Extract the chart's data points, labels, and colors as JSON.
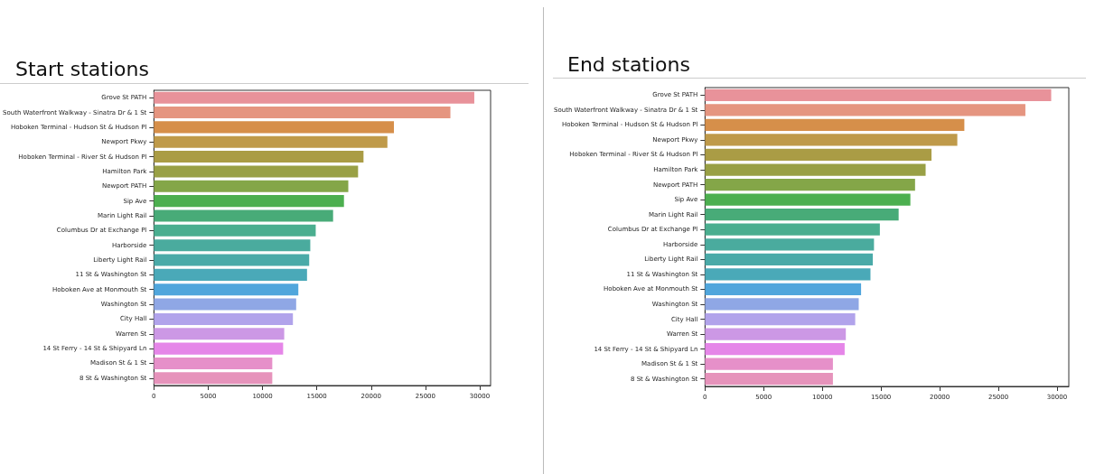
{
  "chart_data": [
    {
      "type": "bar",
      "orientation": "horizontal",
      "title": "Start stations",
      "categories": [
        "Grove St PATH",
        "South Waterfront Walkway - Sinatra Dr & 1 St",
        "Hoboken Terminal - Hudson St & Hudson Pl",
        "Newport Pkwy",
        "Hoboken Terminal - River St & Hudson Pl",
        "Hamilton Park",
        "Newport PATH",
        "Sip Ave",
        "Marin Light Rail",
        "Columbus Dr at Exchange Pl",
        "Harborside",
        "Liberty Light Rail",
        "11 St & Washington St",
        "Hoboken Ave at Monmouth St",
        "Washington St",
        "City Hall",
        "Warren St",
        "14 St Ferry - 14 St & Shipyard Ln",
        "Madison St & 1 St",
        "8 St & Washington St"
      ],
      "values": [
        29500,
        27300,
        22100,
        21500,
        19300,
        18800,
        17900,
        17500,
        16500,
        14900,
        14400,
        14300,
        14100,
        13300,
        13100,
        12800,
        12000,
        11900,
        10900,
        10900
      ],
      "colors": [
        "#e8929a",
        "#e59580",
        "#d68f4a",
        "#bf9a4a",
        "#aa9c45",
        "#99a045",
        "#84a648",
        "#4caf4f",
        "#48ab78",
        "#4aae8f",
        "#4aab9e",
        "#4aaaa8",
        "#4aa9b8",
        "#50a6dc",
        "#8fa7e5",
        "#b1a3eb",
        "#cc98e5",
        "#e586e8",
        "#e690c9",
        "#e693bb"
      ],
      "xlim": [
        0,
        31000
      ],
      "xticks": [
        0,
        5000,
        10000,
        15000,
        20000,
        25000,
        30000
      ]
    },
    {
      "type": "bar",
      "orientation": "horizontal",
      "title": "End stations",
      "categories": [
        "Grove St PATH",
        "South Waterfront Walkway - Sinatra Dr & 1 St",
        "Hoboken Terminal - Hudson St & Hudson Pl",
        "Newport Pkwy",
        "Hoboken Terminal - River St & Hudson Pl",
        "Hamilton Park",
        "Newport PATH",
        "Sip Ave",
        "Marin Light Rail",
        "Columbus Dr at Exchange Pl",
        "Harborside",
        "Liberty Light Rail",
        "11 St & Washington St",
        "Hoboken Ave at Monmouth St",
        "Washington St",
        "City Hall",
        "Warren St",
        "14 St Ferry - 14 St & Shipyard Ln",
        "Madison St & 1 St",
        "8 St & Washington St"
      ],
      "values": [
        29500,
        27300,
        22100,
        21500,
        19300,
        18800,
        17900,
        17500,
        16500,
        14900,
        14400,
        14300,
        14100,
        13300,
        13100,
        12800,
        12000,
        11900,
        10900,
        10900
      ],
      "colors": [
        "#e8929a",
        "#e59580",
        "#d68f4a",
        "#bf9a4a",
        "#aa9c45",
        "#99a045",
        "#84a648",
        "#4caf4f",
        "#48ab78",
        "#4aae8f",
        "#4aab9e",
        "#4aaaa8",
        "#4aa9b8",
        "#50a6dc",
        "#8fa7e5",
        "#b1a3eb",
        "#cc98e5",
        "#e586e8",
        "#e690c9",
        "#e693bb"
      ],
      "xlim": [
        0,
        31000
      ],
      "xticks": [
        0,
        5000,
        10000,
        15000,
        20000,
        25000,
        30000
      ]
    }
  ]
}
